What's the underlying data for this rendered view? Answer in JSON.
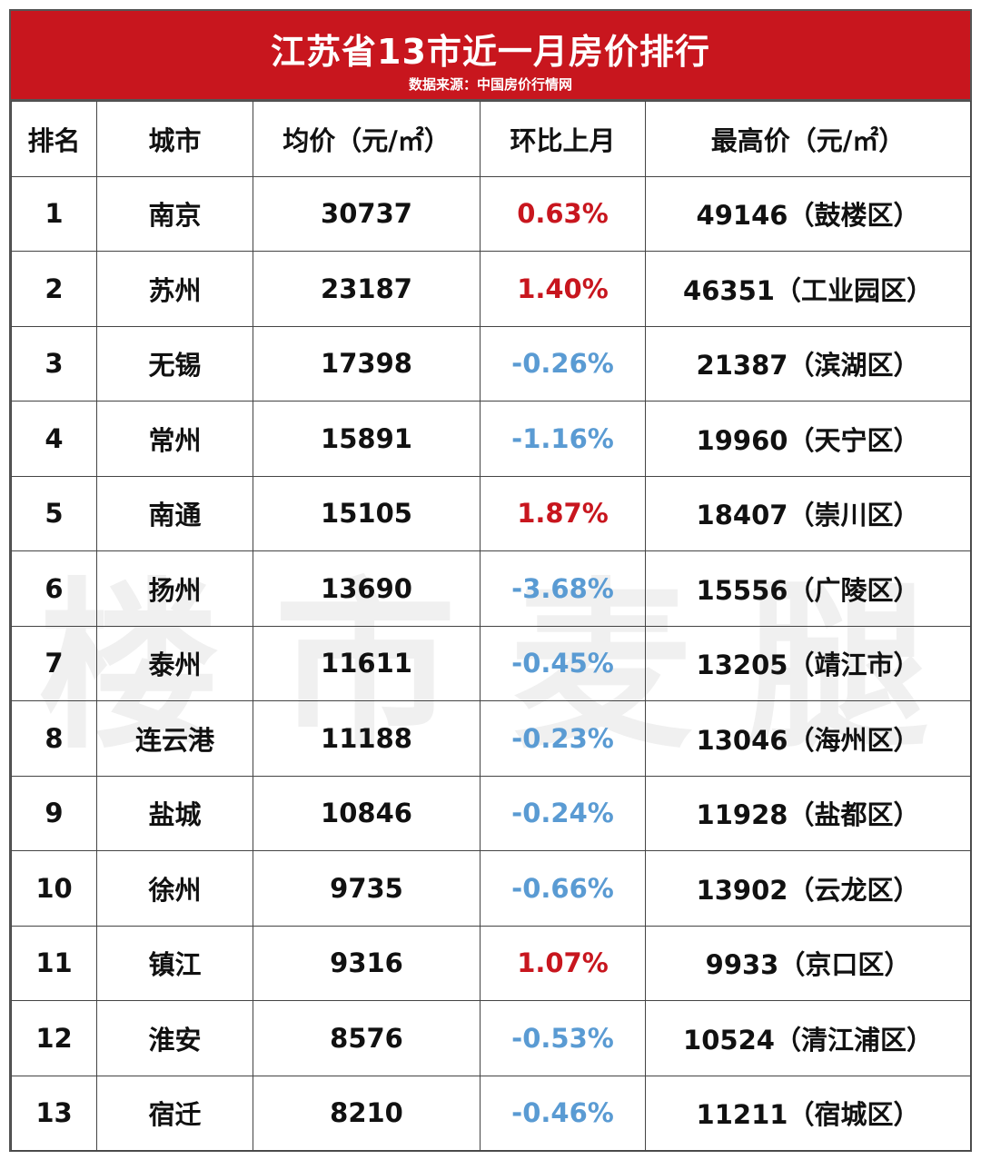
{
  "header": {
    "title": "江苏省13市近一月房价排行",
    "subtitle": "数据来源：中国房价行情网"
  },
  "watermark": "楼市麦腿",
  "columns": [
    "排名",
    "城市",
    "均价（元/㎡）",
    "环比上月",
    "最高价（元/㎡）"
  ],
  "colors": {
    "header_bg": "#c8161e",
    "up": "#c8161e",
    "down": "#5a9bd3"
  },
  "rows": [
    {
      "rank": "1",
      "city": "南京",
      "avg": "30737",
      "mom": "0.63%",
      "trend": "up",
      "max": "49146（鼓楼区）"
    },
    {
      "rank": "2",
      "city": "苏州",
      "avg": "23187",
      "mom": "1.40%",
      "trend": "up",
      "max": "46351（工业园区）"
    },
    {
      "rank": "3",
      "city": "无锡",
      "avg": "17398",
      "mom": "-0.26%",
      "trend": "down",
      "max": "21387（滨湖区）"
    },
    {
      "rank": "4",
      "city": "常州",
      "avg": "15891",
      "mom": "-1.16%",
      "trend": "down",
      "max": "19960（天宁区）"
    },
    {
      "rank": "5",
      "city": "南通",
      "avg": "15105",
      "mom": "1.87%",
      "trend": "up",
      "max": "18407（崇川区）"
    },
    {
      "rank": "6",
      "city": "扬州",
      "avg": "13690",
      "mom": "-3.68%",
      "trend": "down",
      "max": "15556（广陵区）"
    },
    {
      "rank": "7",
      "city": "泰州",
      "avg": "11611",
      "mom": "-0.45%",
      "trend": "down",
      "max": "13205（靖江市）"
    },
    {
      "rank": "8",
      "city": "连云港",
      "avg": "11188",
      "mom": "-0.23%",
      "trend": "down",
      "max": "13046（海州区）"
    },
    {
      "rank": "9",
      "city": "盐城",
      "avg": "10846",
      "mom": "-0.24%",
      "trend": "down",
      "max": "11928（盐都区）"
    },
    {
      "rank": "10",
      "city": "徐州",
      "avg": "9735",
      "mom": "-0.66%",
      "trend": "down",
      "max": "13902（云龙区）"
    },
    {
      "rank": "11",
      "city": "镇江",
      "avg": "9316",
      "mom": "1.07%",
      "trend": "up",
      "max": "9933（京口区）"
    },
    {
      "rank": "12",
      "city": "淮安",
      "avg": "8576",
      "mom": "-0.53%",
      "trend": "down",
      "max": "10524（清江浦区）"
    },
    {
      "rank": "13",
      "city": "宿迁",
      "avg": "8210",
      "mom": "-0.46%",
      "trend": "down",
      "max": "11211（宿城区）"
    }
  ]
}
